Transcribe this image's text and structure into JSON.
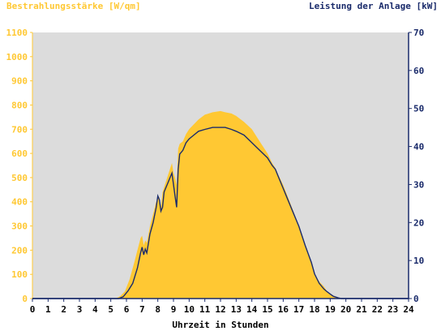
{
  "colors": {
    "plot_bg": "#dcdcdc",
    "irradiance_fill": "#ffc833",
    "power_line": "#1a2b6b",
    "left_axis_text": "#ffc833",
    "right_axis_text": "#1a2b6b",
    "x_axis_text": "#000000"
  },
  "chart_data": {
    "type": "area",
    "ylabel_left": "Bestrahlungsstärke [W/qm]",
    "ylabel_right": "Leistung der Anlage [kW]",
    "xlabel": "Uhrzeit in Stunden",
    "xlim": [
      0,
      24
    ],
    "ylim_left": [
      0,
      1100
    ],
    "ylim_right": [
      0,
      70
    ],
    "x_ticks": [
      0,
      1,
      2,
      3,
      4,
      5,
      6,
      7,
      8,
      9,
      10,
      11,
      12,
      13,
      14,
      15,
      16,
      17,
      18,
      19,
      20,
      21,
      22,
      23,
      24
    ],
    "y_left_ticks": [
      0,
      100,
      200,
      300,
      400,
      500,
      600,
      700,
      800,
      900,
      1000,
      1100
    ],
    "y_right_ticks": [
      0,
      10,
      20,
      30,
      40,
      50,
      60,
      70
    ],
    "grid": false,
    "series": [
      {
        "axis": "left",
        "style": "area",
        "x": [
          0,
          5.3,
          5.6,
          5.9,
          6.2,
          6.5,
          6.7,
          6.9,
          7.0,
          7.1,
          7.2,
          7.3,
          7.5,
          7.7,
          7.9,
          8.0,
          8.1,
          8.2,
          8.3,
          8.4,
          8.5,
          8.6,
          8.7,
          8.8,
          8.9,
          9.0,
          9.1,
          9.2,
          9.3,
          9.4,
          9.6,
          9.8,
          10.0,
          10.3,
          10.6,
          11.0,
          11.5,
          12.0,
          12.3,
          12.7,
          13.0,
          13.5,
          14.0,
          14.5,
          15.0,
          15.3,
          15.5,
          15.7,
          16.0,
          16.3,
          16.6,
          17.0,
          17.4,
          17.8,
          18.0,
          18.3,
          18.6,
          18.8,
          19.0,
          19.2,
          19.5,
          19.7,
          20,
          24
        ],
        "y": [
          0,
          0,
          10,
          30,
          80,
          150,
          200,
          250,
          260,
          220,
          240,
          230,
          300,
          350,
          400,
          410,
          420,
          380,
          440,
          460,
          480,
          500,
          520,
          540,
          560,
          520,
          500,
          470,
          620,
          640,
          650,
          680,
          700,
          720,
          740,
          760,
          770,
          775,
          770,
          765,
          755,
          730,
          700,
          650,
          600,
          560,
          540,
          510,
          470,
          420,
          370,
          300,
          220,
          150,
          100,
          70,
          50,
          30,
          20,
          10,
          3,
          0,
          0,
          0
        ]
      },
      {
        "axis": "right",
        "style": "line",
        "x": [
          0,
          5.5,
          5.8,
          6.1,
          6.4,
          6.7,
          6.9,
          7.0,
          7.1,
          7.2,
          7.3,
          7.5,
          7.7,
          7.9,
          8.0,
          8.1,
          8.2,
          8.3,
          8.4,
          8.5,
          8.6,
          8.7,
          8.8,
          8.9,
          9.0,
          9.1,
          9.2,
          9.3,
          9.4,
          9.6,
          9.8,
          10.0,
          10.3,
          10.6,
          11.0,
          11.5,
          12.0,
          12.3,
          12.7,
          13.0,
          13.5,
          14.0,
          14.5,
          15.0,
          15.3,
          15.5,
          15.7,
          16.0,
          16.3,
          16.6,
          17.0,
          17.4,
          17.8,
          18.0,
          18.3,
          18.6,
          18.8,
          19.0,
          19.2,
          19.5,
          19.7,
          20,
          24
        ],
        "y": [
          0,
          0,
          0.5,
          2,
          4,
          8,
          12,
          13.5,
          11.5,
          13,
          12,
          17,
          20,
          24,
          27,
          26,
          23,
          24,
          28,
          29,
          30,
          31,
          32,
          33,
          30,
          27,
          24,
          34,
          38,
          39,
          41,
          42,
          43,
          44,
          44.5,
          45,
          45,
          45,
          44.5,
          44,
          43,
          41,
          39,
          37,
          35,
          34,
          32,
          29,
          26,
          23,
          19,
          14,
          9.5,
          6.5,
          4,
          2.5,
          1.8,
          1.2,
          0.6,
          0.2,
          0,
          0,
          0
        ]
      }
    ]
  }
}
